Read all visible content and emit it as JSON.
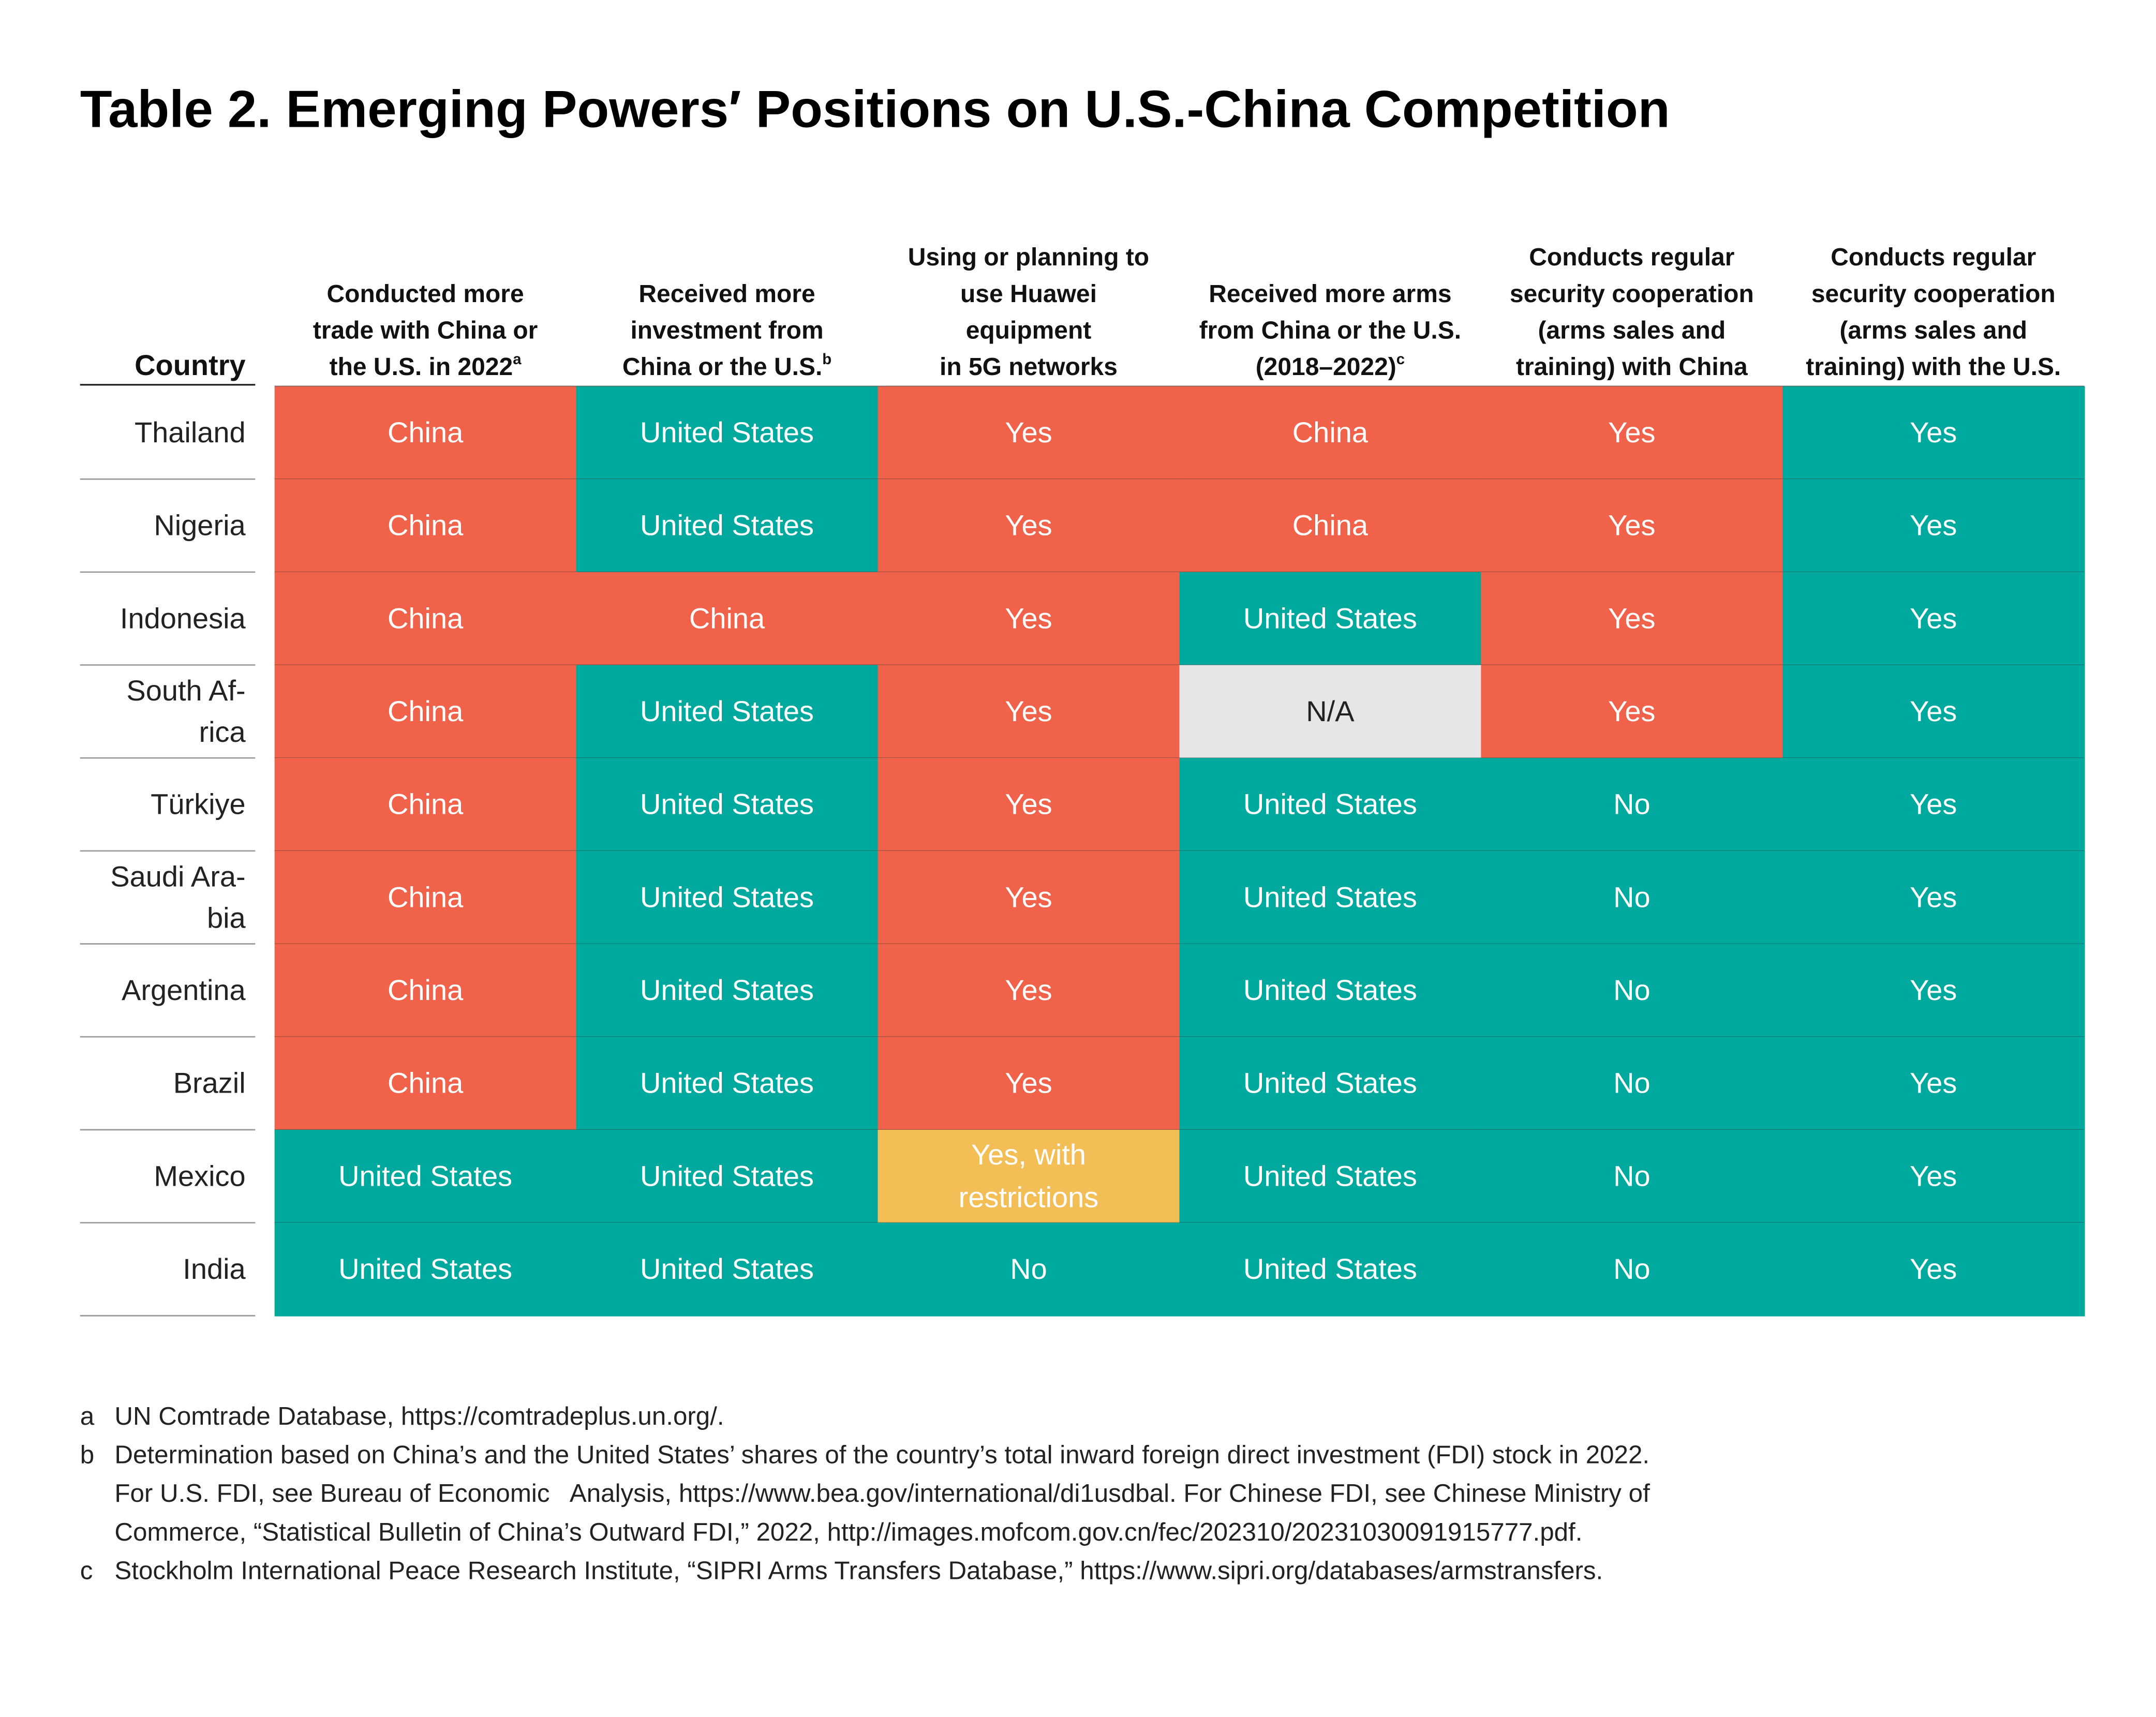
{
  "title": "Table 2. Emerging Powers′ Positions on U.S.-China Competition",
  "table": {
    "country_header": "Country",
    "columns": [
      {
        "lines": [
          "Conducted more",
          "trade with China or",
          "the U.S. in 2022"
        ],
        "note": "a"
      },
      {
        "lines": [
          "Received more",
          "investment from",
          "China or the U.S."
        ],
        "note": "b"
      },
      {
        "lines": [
          "Using or planning to",
          "use Huawei",
          "equipment",
          "in 5G networks"
        ]
      },
      {
        "lines": [
          "Received more arms",
          "from China or the U.S.",
          "(2018–2022)"
        ],
        "note": "c"
      },
      {
        "lines": [
          "Conducts regular",
          "security cooperation",
          "(arms sales  and",
          "training) with China"
        ]
      },
      {
        "lines": [
          "Conducts regular",
          "security cooperation",
          "(arms sales and",
          "training) with the U.S."
        ]
      }
    ],
    "rows": [
      {
        "country": [
          "Thailand"
        ],
        "cells": [
          [
            "China"
          ],
          [
            "United States"
          ],
          [
            "Yes"
          ],
          [
            "China"
          ],
          [
            "Yes"
          ],
          [
            "Yes"
          ]
        ],
        "colors": [
          "#f0634a",
          "#00a99d",
          "#f0634a",
          "#f0634a",
          "#f0634a",
          "#00a99d"
        ]
      },
      {
        "country": [
          "Nigeria"
        ],
        "cells": [
          [
            "China"
          ],
          [
            "United States"
          ],
          [
            "Yes"
          ],
          [
            "China"
          ],
          [
            "Yes"
          ],
          [
            "Yes"
          ]
        ],
        "colors": [
          "#f0634a",
          "#00a99d",
          "#f0634a",
          "#f0634a",
          "#f0634a",
          "#00a99d"
        ]
      },
      {
        "country": [
          "Indonesia"
        ],
        "cells": [
          [
            "China"
          ],
          [
            "China"
          ],
          [
            "Yes"
          ],
          [
            "United States"
          ],
          [
            "Yes"
          ],
          [
            "Yes"
          ]
        ],
        "colors": [
          "#f0634a",
          "#f0634a",
          "#f0634a",
          "#00a99d",
          "#f0634a",
          "#00a99d"
        ]
      },
      {
        "country": [
          "South Af-",
          "rica"
        ],
        "cells": [
          [
            "China"
          ],
          [
            "United States"
          ],
          [
            "Yes"
          ],
          [
            "N/A"
          ],
          [
            "Yes"
          ],
          [
            "Yes"
          ]
        ],
        "colors": [
          "#f0634a",
          "#00a99d",
          "#f0634a",
          "#e6e6e8",
          "#f0634a",
          "#00a99d"
        ]
      },
      {
        "country": [
          "Türkiye"
        ],
        "cells": [
          [
            "China"
          ],
          [
            "United States"
          ],
          [
            "Yes"
          ],
          [
            "United States"
          ],
          [
            "No"
          ],
          [
            "Yes"
          ]
        ],
        "colors": [
          "#f0634a",
          "#00a99d",
          "#f0634a",
          "#00a99d",
          "#00a99d",
          "#00a99d"
        ]
      },
      {
        "country": [
          "Saudi Ara-",
          "bia"
        ],
        "cells": [
          [
            "China"
          ],
          [
            "United States"
          ],
          [
            "Yes"
          ],
          [
            "United States"
          ],
          [
            "No"
          ],
          [
            "Yes"
          ]
        ],
        "colors": [
          "#f0634a",
          "#00a99d",
          "#f0634a",
          "#00a99d",
          "#00a99d",
          "#00a99d"
        ]
      },
      {
        "country": [
          "Argentina"
        ],
        "cells": [
          [
            "China"
          ],
          [
            "United States"
          ],
          [
            "Yes"
          ],
          [
            "United States"
          ],
          [
            "No"
          ],
          [
            "Yes"
          ]
        ],
        "colors": [
          "#f0634a",
          "#00a99d",
          "#f0634a",
          "#00a99d",
          "#00a99d",
          "#00a99d"
        ]
      },
      {
        "country": [
          "Brazil"
        ],
        "cells": [
          [
            "China"
          ],
          [
            "United States"
          ],
          [
            "Yes"
          ],
          [
            "United States"
          ],
          [
            "No"
          ],
          [
            "Yes"
          ]
        ],
        "colors": [
          "#f0634a",
          "#00a99d",
          "#f0634a",
          "#00a99d",
          "#00a99d",
          "#00a99d"
        ]
      },
      {
        "country": [
          "Mexico"
        ],
        "cells": [
          [
            "United States"
          ],
          [
            "United States"
          ],
          [
            "Yes, with",
            "restrictions"
          ],
          [
            "United States"
          ],
          [
            "No"
          ],
          [
            "Yes"
          ]
        ],
        "colors": [
          "#00a99d",
          "#00a99d",
          "#f2be55",
          "#00a99d",
          "#00a99d",
          "#00a99d"
        ]
      },
      {
        "country": [
          "India"
        ],
        "cells": [
          [
            "United States"
          ],
          [
            "United States"
          ],
          [
            "No"
          ],
          [
            "United States"
          ],
          [
            "No"
          ],
          [
            "Yes"
          ]
        ],
        "colors": [
          "#00a99d",
          "#00a99d",
          "#00a99d",
          "#00a99d",
          "#00a99d",
          "#00a99d"
        ]
      }
    ]
  },
  "footnotes": [
    {
      "mark": "a",
      "lines": [
        "UN Comtrade Database, https://comtradeplus.un.org/."
      ]
    },
    {
      "mark": "b",
      "lines": [
        "Determination based on China’s and the United States’ shares of the country’s total inward foreign direct investment (FDI) stock in 2022.",
        "For U.S. FDI, see Bureau of Economic   Analysis, https://www.bea.gov/international/di1usdbal. For Chinese FDI, see Chinese Ministry of",
        "Commerce, “Statistical Bulletin of China’s Outward FDI,” 2022, http://images.mofcom.gov.cn/fec/202310/20231030091915777.pdf."
      ]
    },
    {
      "mark": "c",
      "lines": [
        "Stockholm International Peace Research Institute, “SIPRI Arms Transfers Database,” https://www.sipri.org/databases/armstransfers."
      ]
    }
  ]
}
